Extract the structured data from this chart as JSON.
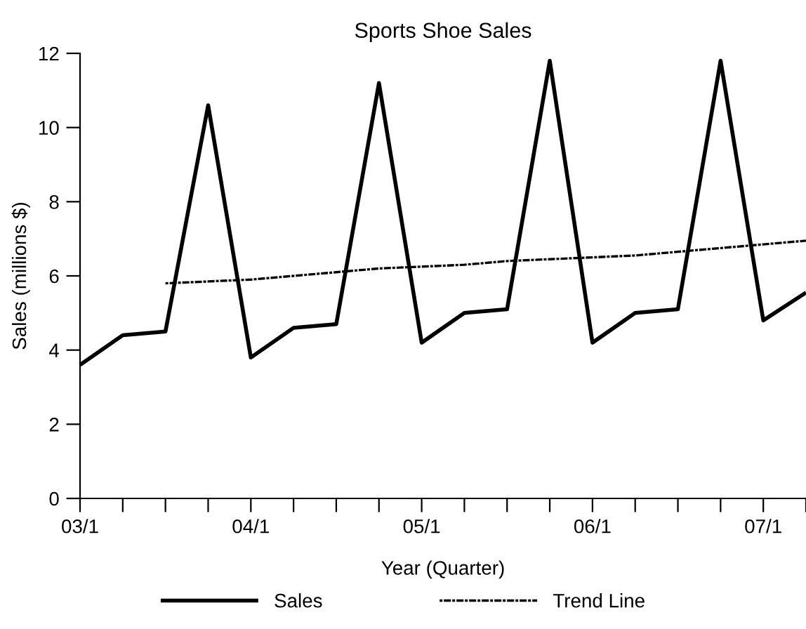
{
  "chart_data": {
    "type": "line",
    "title": "Sports Shoe Sales",
    "xlabel": "Year (Quarter)",
    "ylabel": "Sales (millions $)",
    "categories": [
      "03/1",
      null,
      null,
      null,
      "04/1",
      null,
      null,
      null,
      "05/1",
      null,
      null,
      null,
      "06/1",
      null,
      null,
      null,
      "07/1",
      null
    ],
    "series": [
      {
        "name": "Sales",
        "color": "#000000",
        "line_style": "solid",
        "values": [
          3.6,
          4.4,
          4.5,
          10.6,
          3.8,
          4.6,
          4.7,
          11.2,
          4.2,
          5.0,
          5.1,
          11.8,
          4.2,
          5.0,
          5.1,
          11.8,
          4.8,
          5.55
        ]
      },
      {
        "name": "Trend Line",
        "color": "#000000",
        "line_style": "dotted",
        "values": [
          null,
          null,
          5.8,
          5.85,
          5.9,
          6.0,
          6.1,
          6.2,
          6.25,
          6.3,
          6.4,
          6.45,
          6.5,
          6.55,
          6.65,
          6.75,
          6.85,
          6.95
        ]
      }
    ],
    "ylim": [
      0,
      12
    ],
    "yticks": [
      0,
      2,
      4,
      6,
      8,
      10,
      12
    ],
    "grid": false,
    "legend": "bottom",
    "marker": "none"
  }
}
